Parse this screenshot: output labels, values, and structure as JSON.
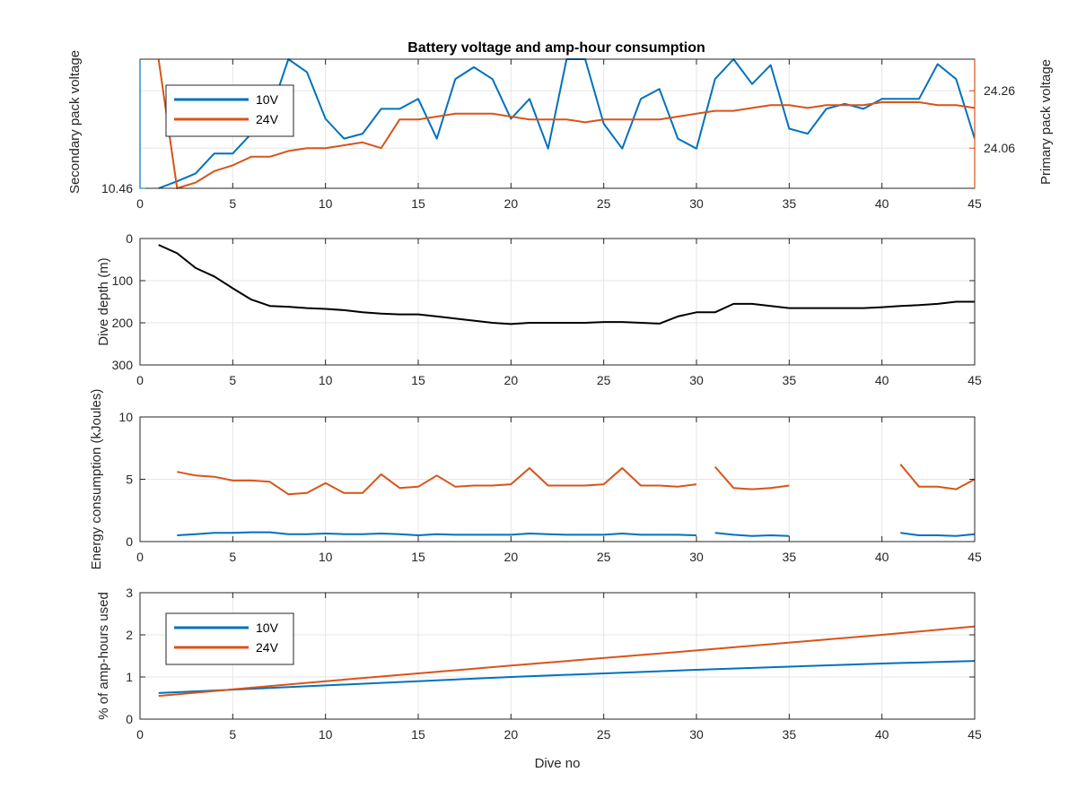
{
  "figure_title": "Battery voltage and amp-hour consumption",
  "colors": {
    "blue": "#0072BD",
    "orange": "#D95319",
    "black": "#000000",
    "grid": "#e6e6e6",
    "axis": "#262626"
  },
  "chart_data": [
    {
      "id": "voltage",
      "type": "line",
      "title": "Battery voltage and amp-hour consumption",
      "xlabel": "",
      "ylabel_left": "Secondary pack voltage",
      "ylabel_right": "Primary pack voltage",
      "xlim": [
        0,
        45
      ],
      "x_ticks": [
        0,
        5,
        10,
        15,
        20,
        25,
        30,
        35,
        40,
        45
      ],
      "ylim_left": [
        10.46,
        10.59
      ],
      "y_ticks_left": [
        10.46
      ],
      "ylim_right": [
        23.92,
        24.37
      ],
      "y_ticks_right": [
        24.06,
        24.26
      ],
      "grid": true,
      "legend": {
        "position": "top-left",
        "entries": [
          "10V",
          "24V"
        ]
      },
      "series": [
        {
          "name": "10V",
          "axis": "left",
          "color": "blue",
          "points": [
            [
              1,
              10.46
            ],
            [
              2,
              10.467
            ],
            [
              3,
              10.475
            ],
            [
              4,
              10.495
            ],
            [
              5,
              10.495
            ],
            [
              6,
              10.515
            ],
            [
              7,
              10.535
            ],
            [
              8,
              10.59
            ],
            [
              9,
              10.577
            ],
            [
              10,
              10.53
            ],
            [
              11,
              10.51
            ],
            [
              12,
              10.515
            ],
            [
              13,
              10.54
            ],
            [
              14,
              10.54
            ],
            [
              15,
              10.55
            ],
            [
              16,
              10.51
            ],
            [
              17,
              10.57
            ],
            [
              18,
              10.582
            ],
            [
              19,
              10.57
            ],
            [
              20,
              10.53
            ],
            [
              21,
              10.55
            ],
            [
              22,
              10.5
            ],
            [
              23,
              10.59
            ],
            [
              24,
              10.59
            ],
            [
              25,
              10.525
            ],
            [
              26,
              10.5
            ],
            [
              27,
              10.55
            ],
            [
              28,
              10.56
            ],
            [
              29,
              10.51
            ],
            [
              30,
              10.5
            ],
            [
              31,
              10.57
            ],
            [
              32,
              10.59
            ],
            [
              33,
              10.565
            ],
            [
              34,
              10.584
            ],
            [
              35,
              10.52
            ],
            [
              36,
              10.515
            ],
            [
              37,
              10.54
            ],
            [
              38,
              10.545
            ],
            [
              39,
              10.54
            ],
            [
              40,
              10.55
            ],
            [
              41,
              10.55
            ],
            [
              42,
              10.55
            ],
            [
              43,
              10.585
            ],
            [
              44,
              10.57
            ],
            [
              45,
              10.51
            ]
          ]
        },
        {
          "name": "24V",
          "axis": "right",
          "color": "orange",
          "points": [
            [
              1,
              24.37
            ],
            [
              2,
              23.92
            ],
            [
              3,
              23.94
            ],
            [
              4,
              23.98
            ],
            [
              5,
              24.0
            ],
            [
              6,
              24.03
            ],
            [
              7,
              24.03
            ],
            [
              8,
              24.05
            ],
            [
              9,
              24.06
            ],
            [
              10,
              24.06
            ],
            [
              11,
              24.07
            ],
            [
              12,
              24.08
            ],
            [
              13,
              24.06
            ],
            [
              14,
              24.16
            ],
            [
              15,
              24.16
            ],
            [
              16,
              24.17
            ],
            [
              17,
              24.18
            ],
            [
              18,
              24.18
            ],
            [
              19,
              24.18
            ],
            [
              20,
              24.17
            ],
            [
              21,
              24.16
            ],
            [
              22,
              24.16
            ],
            [
              23,
              24.16
            ],
            [
              24,
              24.15
            ],
            [
              25,
              24.16
            ],
            [
              26,
              24.16
            ],
            [
              27,
              24.16
            ],
            [
              28,
              24.16
            ],
            [
              29,
              24.17
            ],
            [
              30,
              24.18
            ],
            [
              31,
              24.19
            ],
            [
              32,
              24.19
            ],
            [
              33,
              24.2
            ],
            [
              34,
              24.21
            ],
            [
              35,
              24.21
            ],
            [
              36,
              24.2
            ],
            [
              37,
              24.21
            ],
            [
              38,
              24.21
            ],
            [
              39,
              24.21
            ],
            [
              40,
              24.22
            ],
            [
              41,
              24.22
            ],
            [
              42,
              24.22
            ],
            [
              43,
              24.21
            ],
            [
              44,
              24.21
            ],
            [
              45,
              24.2
            ]
          ]
        }
      ]
    },
    {
      "id": "depth",
      "type": "line",
      "title": "",
      "xlabel": "",
      "ylabel": "Dive depth (m)",
      "xlim": [
        0,
        45
      ],
      "x_ticks": [
        0,
        5,
        10,
        15,
        20,
        25,
        30,
        35,
        40,
        45
      ],
      "ylim": [
        0,
        300
      ],
      "y_reversed": true,
      "y_ticks": [
        0,
        100,
        200,
        300
      ],
      "grid": true,
      "series": [
        {
          "name": "",
          "color": "black",
          "points": [
            [
              1,
              15
            ],
            [
              2,
              35
            ],
            [
              3,
              70
            ],
            [
              4,
              90
            ],
            [
              5,
              118
            ],
            [
              6,
              145
            ],
            [
              7,
              160
            ],
            [
              8,
              162
            ],
            [
              9,
              165
            ],
            [
              10,
              167
            ],
            [
              11,
              170
            ],
            [
              12,
              175
            ],
            [
              13,
              178
            ],
            [
              14,
              180
            ],
            [
              15,
              180
            ],
            [
              16,
              185
            ],
            [
              17,
              190
            ],
            [
              18,
              195
            ],
            [
              19,
              200
            ],
            [
              20,
              203
            ],
            [
              21,
              200
            ],
            [
              22,
              200
            ],
            [
              23,
              200
            ],
            [
              24,
              200
            ],
            [
              25,
              198
            ],
            [
              26,
              198
            ],
            [
              27,
              200
            ],
            [
              28,
              202
            ],
            [
              29,
              185
            ],
            [
              30,
              175
            ],
            [
              31,
              175
            ],
            [
              32,
              155
            ],
            [
              33,
              155
            ],
            [
              34,
              160
            ],
            [
              35,
              165
            ],
            [
              36,
              165
            ],
            [
              37,
              165
            ],
            [
              38,
              165
            ],
            [
              39,
              165
            ],
            [
              40,
              163
            ],
            [
              41,
              160
            ],
            [
              42,
              158
            ],
            [
              43,
              155
            ],
            [
              44,
              150
            ],
            [
              45,
              150
            ]
          ]
        }
      ]
    },
    {
      "id": "energy",
      "type": "line",
      "title": "",
      "xlabel": "",
      "ylabel": "Energy consumption (kJoules)",
      "xlim": [
        0,
        45
      ],
      "x_ticks": [
        0,
        5,
        10,
        15,
        20,
        25,
        30,
        35,
        40,
        45
      ],
      "ylim": [
        0,
        10
      ],
      "y_ticks": [
        0,
        5,
        10
      ],
      "grid": true,
      "series": [
        {
          "name": "10V",
          "color": "blue",
          "segments": [
            [
              [
                2,
                0.5
              ],
              [
                3,
                0.6
              ],
              [
                4,
                0.7
              ],
              [
                5,
                0.7
              ],
              [
                6,
                0.75
              ],
              [
                7,
                0.75
              ],
              [
                8,
                0.6
              ],
              [
                9,
                0.6
              ],
              [
                10,
                0.65
              ],
              [
                11,
                0.6
              ],
              [
                12,
                0.6
              ],
              [
                13,
                0.65
              ],
              [
                14,
                0.6
              ],
              [
                15,
                0.5
              ],
              [
                16,
                0.6
              ],
              [
                17,
                0.55
              ],
              [
                18,
                0.55
              ],
              [
                19,
                0.55
              ],
              [
                20,
                0.55
              ],
              [
                21,
                0.65
              ],
              [
                22,
                0.6
              ],
              [
                23,
                0.55
              ],
              [
                24,
                0.55
              ],
              [
                25,
                0.55
              ],
              [
                26,
                0.65
              ],
              [
                27,
                0.55
              ],
              [
                28,
                0.55
              ],
              [
                29,
                0.55
              ],
              [
                30,
                0.5
              ]
            ],
            [
              [
                31,
                0.7
              ],
              [
                32,
                0.55
              ],
              [
                33,
                0.45
              ],
              [
                34,
                0.5
              ],
              [
                35,
                0.45
              ]
            ],
            [
              [
                41,
                0.7
              ],
              [
                42,
                0.5
              ],
              [
                43,
                0.5
              ],
              [
                44,
                0.45
              ],
              [
                45,
                0.6
              ]
            ]
          ]
        },
        {
          "name": "24V",
          "color": "orange",
          "segments": [
            [
              [
                2,
                5.6
              ],
              [
                3,
                5.3
              ],
              [
                4,
                5.2
              ],
              [
                5,
                4.9
              ],
              [
                6,
                4.9
              ],
              [
                7,
                4.8
              ],
              [
                8,
                3.8
              ],
              [
                9,
                3.9
              ],
              [
                10,
                4.7
              ],
              [
                11,
                3.9
              ],
              [
                12,
                3.9
              ],
              [
                13,
                5.4
              ],
              [
                14,
                4.3
              ],
              [
                15,
                4.4
              ],
              [
                16,
                5.3
              ],
              [
                17,
                4.4
              ],
              [
                18,
                4.5
              ],
              [
                19,
                4.5
              ],
              [
                20,
                4.6
              ],
              [
                21,
                5.9
              ],
              [
                22,
                4.5
              ],
              [
                23,
                4.5
              ],
              [
                24,
                4.5
              ],
              [
                25,
                4.6
              ],
              [
                26,
                5.9
              ],
              [
                27,
                4.5
              ],
              [
                28,
                4.5
              ],
              [
                29,
                4.4
              ],
              [
                30,
                4.6
              ]
            ],
            [
              [
                31,
                6.0
              ],
              [
                32,
                4.3
              ],
              [
                33,
                4.2
              ],
              [
                34,
                4.3
              ],
              [
                35,
                4.5
              ]
            ],
            [
              [
                41,
                6.2
              ],
              [
                42,
                4.4
              ],
              [
                43,
                4.4
              ],
              [
                44,
                4.2
              ],
              [
                45,
                5.0
              ]
            ]
          ]
        }
      ]
    },
    {
      "id": "amphours",
      "type": "line",
      "title": "",
      "xlabel": "Dive no",
      "ylabel": "% of amp-hours used",
      "xlim": [
        0,
        45
      ],
      "x_ticks": [
        0,
        5,
        10,
        15,
        20,
        25,
        30,
        35,
        40,
        45
      ],
      "ylim": [
        0,
        3
      ],
      "y_ticks": [
        0,
        1,
        2,
        3
      ],
      "grid": true,
      "legend": {
        "position": "top-left",
        "entries": [
          "10V",
          "24V"
        ]
      },
      "series": [
        {
          "name": "10V",
          "color": "blue",
          "points": [
            [
              1,
              0.62
            ],
            [
              10,
              0.8
            ],
            [
              20,
              1.0
            ],
            [
              30,
              1.17
            ],
            [
              40,
              1.32
            ],
            [
              45,
              1.38
            ]
          ]
        },
        {
          "name": "24V",
          "color": "orange",
          "points": [
            [
              1,
              0.55
            ],
            [
              10,
              0.9
            ],
            [
              20,
              1.27
            ],
            [
              30,
              1.63
            ],
            [
              40,
              2.0
            ],
            [
              45,
              2.2
            ]
          ]
        }
      ]
    }
  ]
}
